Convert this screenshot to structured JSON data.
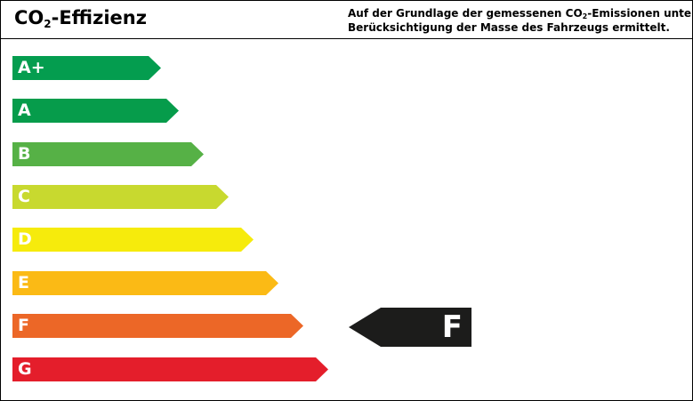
{
  "header": {
    "title_main": "CO",
    "title_sub": "2",
    "title_rest": "-Effizienz",
    "desc_line1_pre": "Auf der Grundlage der gemessenen CO",
    "desc_line1_sub": "2",
    "desc_line1_post": "-Emissionen unter",
    "desc_line2": "Berücksichtigung der Masse des Fahrzeugs ermittelt."
  },
  "classes": [
    {
      "label": "A+",
      "color": "#049d4f"
    },
    {
      "label": "A",
      "color": "#069c4b"
    },
    {
      "label": "B",
      "color": "#56b146"
    },
    {
      "label": "C",
      "color": "#c8d92f"
    },
    {
      "label": "D",
      "color": "#f6eb0c"
    },
    {
      "label": "E",
      "color": "#fbba15"
    },
    {
      "label": "F",
      "color": "#ec6727"
    },
    {
      "label": "G",
      "color": "#e41e2b"
    }
  ],
  "rating": {
    "label": "F",
    "color": "#1c1c1b"
  }
}
